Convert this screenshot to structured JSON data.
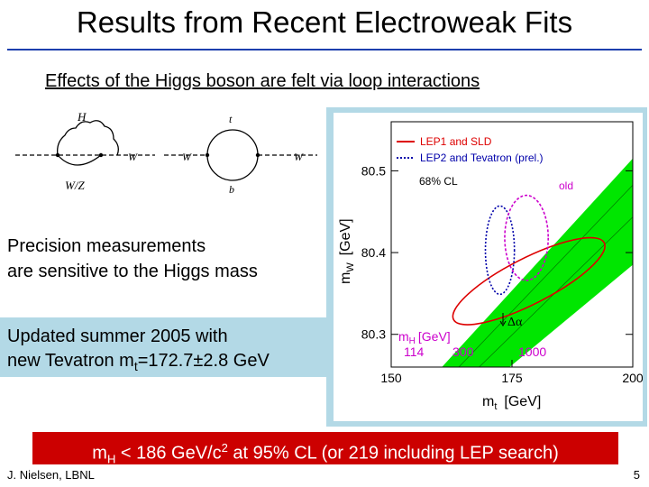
{
  "title": "Results from Recent Electroweak Fits",
  "subtitle": "Effects of the Higgs boson are felt via loop interactions",
  "diagram_labels": {
    "h_loop_label": "H",
    "w_left": "W",
    "wz_label": "W/Z",
    "t_label": "t",
    "w_mid": "W",
    "w_right": "W",
    "b_label": "b"
  },
  "precision_lines": [
    "Precision measurements",
    "are sensitive to the Higgs mass"
  ],
  "update": {
    "line1": "Updated summer 2005 with",
    "line2_prefix": "new Tevatron m",
    "line2_sub": "t",
    "line2_suffix": "=172.7±2.8 GeV"
  },
  "result": {
    "m": "m",
    "sub": "H",
    "mid": " < 186 GeV/c",
    "sup": "2",
    "rest": " at 95% CL  (or 219 including LEP search)"
  },
  "footer": {
    "author": "J. Nielsen, LBNL",
    "page": "5"
  },
  "chart_data": {
    "type": "scatter",
    "xlim": [
      150,
      200
    ],
    "ylim": [
      80.26,
      80.56
    ],
    "xticks": [
      "150",
      "175",
      "200"
    ],
    "yticks": [
      "80.3",
      "80.4",
      "80.5"
    ],
    "xlabel_main": "m",
    "xlabel_sub": "t",
    "xlabel_unit": "[GeV]",
    "ylabel_main": "m",
    "ylabel_sub": "W",
    "ylabel_unit": "[GeV]",
    "legend": {
      "lep1": "LEP1 and SLD",
      "lep2": "LEP2 and Tevatron (prel.)",
      "cl": "68% CL",
      "old": "old"
    },
    "higgs_label_main": "m",
    "higgs_label_sub": "H",
    "higgs_label_unit": "[GeV]",
    "higgs_values": [
      "114",
      "300",
      "1000"
    ],
    "delta_alpha": "Δα",
    "colors": {
      "band": "#00e600",
      "lep1": "#dd0000",
      "lep2": "#0000aa",
      "old": "#cc00cc",
      "higgs_text": "#cc00cc"
    },
    "ellipses": [
      {
        "name": "lep1",
        "cx": 178.5,
        "cy": 80.365,
        "rx": 17.5,
        "ry": 0.028,
        "angle_deg": -27
      },
      {
        "name": "lep2",
        "cx": 172.5,
        "cy": 80.403,
        "rx": 3.0,
        "ry": 0.054,
        "angle_deg": 0
      },
      {
        "name": "old",
        "cx": 178.0,
        "cy": 80.418,
        "rx": 4.5,
        "ry": 0.052,
        "angle_deg": 0
      }
    ],
    "band": [
      {
        "x": 174.5,
        "y": 80.26
      },
      {
        "x": 200,
        "y": 80.385
      },
      {
        "x": 200,
        "y": 80.515
      },
      {
        "x": 160.5,
        "y": 80.26
      }
    ]
  }
}
